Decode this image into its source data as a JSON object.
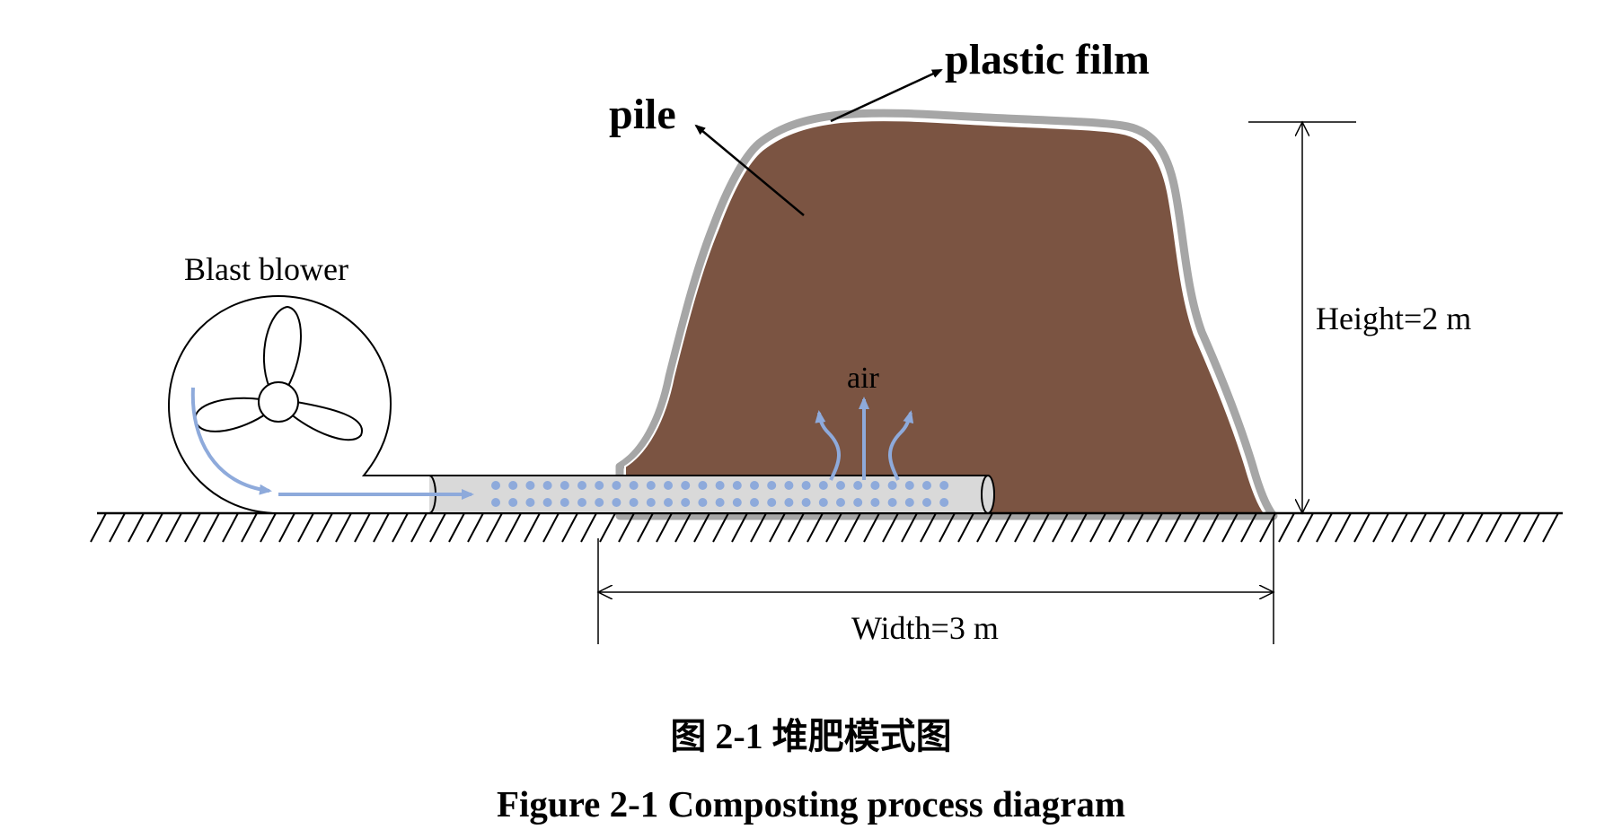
{
  "labels": {
    "plastic_film": "plastic film",
    "pile": "pile",
    "blower": "Blast blower",
    "air": "air",
    "height": "Height=2 m",
    "width": "Width=3 m"
  },
  "caption": {
    "chinese": "图 2-1  堆肥模式图",
    "english": "Figure 2-1 Composting process diagram"
  },
  "colors": {
    "pile": "#7b5442",
    "film": "#a6a6a6",
    "pipe": "#d9d9d9",
    "air_flow": "#8eaadb",
    "line": "#000000"
  }
}
